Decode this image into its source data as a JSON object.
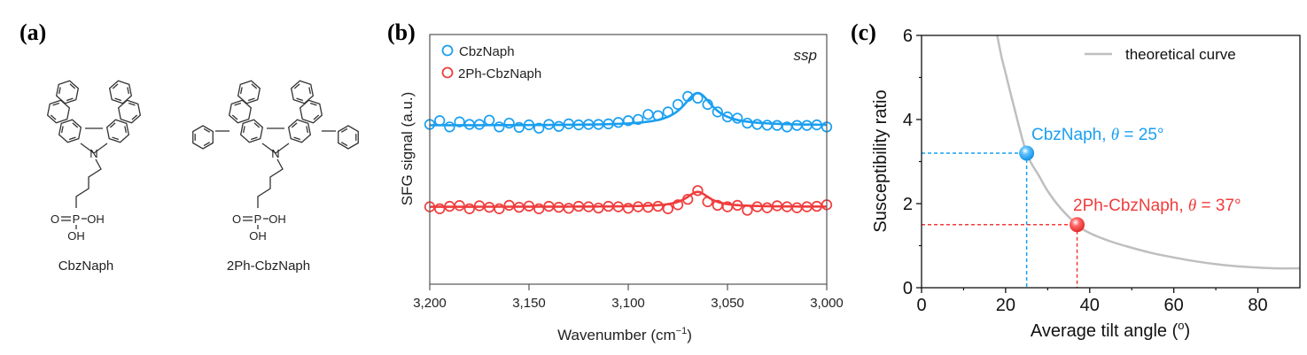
{
  "panels": {
    "a": {
      "label": "(a)",
      "molecules": [
        {
          "name": "CbzNaph",
          "linker_atoms": {
            "n": "N",
            "p": "P",
            "o": "O",
            "oh1": "OH",
            "oh2": "OH"
          }
        },
        {
          "name": "2Ph-CbzNaph",
          "linker_atoms": {
            "n": "N",
            "p": "P",
            "o": "O",
            "oh1": "OH",
            "oh2": "OH"
          }
        }
      ]
    },
    "b": {
      "label": "(b)"
    },
    "c": {
      "label": "(c)"
    }
  },
  "colors": {
    "blue": "#1a9ff0",
    "red": "#f03c3c",
    "curve": "#bfbfbf",
    "axis": "#555555"
  },
  "chart_data": [
    {
      "type": "line",
      "panel": "b",
      "title": "",
      "annotation": "ssp",
      "xlabel": "Wavenumber (cm⁻¹)",
      "ylabel": "SFG signal (a.u.)",
      "xlim": [
        3200,
        3000
      ],
      "ylim": [
        0,
        1
      ],
      "x_reversed": true,
      "xticks": [
        3200,
        3150,
        3100,
        3050,
        3000
      ],
      "xtick_labels": [
        "3,200",
        "3,150",
        "3,100",
        "3,050",
        "3,000"
      ],
      "yticks": [],
      "legend_position": "top-left",
      "series": [
        {
          "name": "CbzNaph",
          "color_key": "blue",
          "marker": "open-circle",
          "fit": {
            "baseline": 0.636,
            "peak_center": 3065,
            "peak_height": 0.13,
            "peak_width": 9
          },
          "x": [
            3200,
            3195,
            3190,
            3185,
            3180,
            3175,
            3170,
            3165,
            3160,
            3155,
            3150,
            3145,
            3140,
            3135,
            3130,
            3125,
            3120,
            3115,
            3110,
            3105,
            3100,
            3095,
            3090,
            3085,
            3080,
            3075,
            3070,
            3065,
            3060,
            3055,
            3050,
            3045,
            3040,
            3035,
            3030,
            3025,
            3020,
            3015,
            3010,
            3005,
            3000
          ],
          "y": [
            0.64,
            0.655,
            0.63,
            0.65,
            0.64,
            0.64,
            0.657,
            0.63,
            0.645,
            0.628,
            0.638,
            0.625,
            0.64,
            0.632,
            0.642,
            0.638,
            0.64,
            0.64,
            0.642,
            0.648,
            0.655,
            0.66,
            0.68,
            0.675,
            0.69,
            0.72,
            0.752,
            0.745,
            0.72,
            0.69,
            0.67,
            0.665,
            0.645,
            0.64,
            0.637,
            0.636,
            0.63,
            0.636,
            0.636,
            0.638,
            0.63
          ]
        },
        {
          "name": "2Ph-CbzNaph",
          "color_key": "red",
          "marker": "open-circle",
          "fit": {
            "baseline": 0.31,
            "peak_center": 3065,
            "peak_height": 0.06,
            "peak_width": 7
          },
          "x": [
            3200,
            3195,
            3190,
            3185,
            3180,
            3175,
            3170,
            3165,
            3160,
            3155,
            3150,
            3145,
            3140,
            3135,
            3130,
            3125,
            3120,
            3115,
            3110,
            3105,
            3100,
            3095,
            3090,
            3085,
            3080,
            3075,
            3070,
            3065,
            3060,
            3055,
            3050,
            3045,
            3040,
            3035,
            3030,
            3025,
            3020,
            3015,
            3010,
            3005,
            3000
          ],
          "y": [
            0.31,
            0.302,
            0.312,
            0.315,
            0.302,
            0.314,
            0.308,
            0.302,
            0.316,
            0.308,
            0.313,
            0.302,
            0.312,
            0.308,
            0.304,
            0.312,
            0.31,
            0.305,
            0.312,
            0.31,
            0.304,
            0.31,
            0.308,
            0.312,
            0.302,
            0.318,
            0.34,
            0.375,
            0.33,
            0.316,
            0.31,
            0.316,
            0.296,
            0.31,
            0.306,
            0.314,
            0.31,
            0.306,
            0.31,
            0.312,
            0.318
          ]
        }
      ]
    },
    {
      "type": "line",
      "panel": "c",
      "title": "",
      "xlabel": "Average tilt angle (°)",
      "ylabel": "Susceptibility ratio",
      "xlim": [
        0,
        90
      ],
      "ylim": [
        0,
        6
      ],
      "xticks": [
        0,
        20,
        40,
        60,
        80
      ],
      "xtick_labels": [
        "0",
        "20",
        "40",
        "60",
        "80"
      ],
      "xminor": [
        10,
        30,
        50,
        70
      ],
      "yticks": [
        0,
        2,
        4,
        6
      ],
      "ytick_labels": [
        "0",
        "2",
        "4",
        "6"
      ],
      "yminor": [
        1,
        3,
        5
      ],
      "legend_position": "top-right",
      "series": [
        {
          "name": "theoretical curve",
          "color_key": "curve",
          "x": [
            18,
            19,
            20,
            22,
            25,
            28,
            30,
            33,
            37,
            40,
            45,
            50,
            55,
            60,
            65,
            70,
            75,
            80,
            85,
            90
          ],
          "y": [
            6.0,
            5.5,
            5.1,
            4.3,
            3.2,
            2.65,
            2.3,
            1.9,
            1.5,
            1.3,
            1.1,
            0.95,
            0.82,
            0.72,
            0.63,
            0.56,
            0.51,
            0.48,
            0.46,
            0.46
          ]
        }
      ],
      "points": [
        {
          "name": "CbzNaph",
          "theta_label": "θ",
          "value_label": " = 25°",
          "label_prefix": "CbzNaph, ",
          "x": 25,
          "y": 3.2,
          "color_key": "blue"
        },
        {
          "name": "2Ph-CbzNaph",
          "theta_label": "θ",
          "value_label": " = 37°",
          "label_prefix": "2Ph-CbzNaph, ",
          "x": 37,
          "y": 1.5,
          "color_key": "red"
        }
      ]
    }
  ]
}
